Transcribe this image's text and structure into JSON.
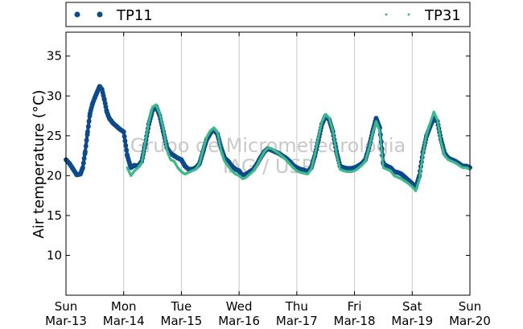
{
  "chart_data": {
    "type": "scatter",
    "ylabel": "Air temperature (°C)",
    "xlabel": "",
    "ylim": [
      5,
      38
    ],
    "y_ticks": [
      10,
      15,
      20,
      25,
      30,
      35
    ],
    "x_range_days": [
      "Mar-13",
      "Mar-20"
    ],
    "x_ticks": [
      {
        "day": "Sun",
        "date": "Mar-13"
      },
      {
        "day": "Mon",
        "date": "Mar-14"
      },
      {
        "day": "Tue",
        "date": "Mar-15"
      },
      {
        "day": "Wed",
        "date": "Mar-16"
      },
      {
        "day": "Thu",
        "date": "Mar-17"
      },
      {
        "day": "Fri",
        "date": "Mar-18"
      },
      {
        "day": "Sat",
        "date": "Mar-19"
      },
      {
        "day": "Sun",
        "date": "Mar-20"
      }
    ],
    "grid": "vertical",
    "legend_placement": "top",
    "watermark": [
      "Grupo de Micrometeorologia",
      "IAG / USP"
    ],
    "series": [
      {
        "name": "TP11",
        "color": "#0d4a8a",
        "marker": "large-dot",
        "points": [
          [
            "Mar-13 00:00",
            22.0
          ],
          [
            "Mar-13 01:30",
            21.5
          ],
          [
            "Mar-13 03:00",
            20.8
          ],
          [
            "Mar-13 04:30",
            20.1
          ],
          [
            "Mar-13 06:00",
            20.2
          ],
          [
            "Mar-13 07:00",
            21.0
          ],
          [
            "Mar-13 08:00",
            23.0
          ],
          [
            "Mar-13 09:00",
            25.5
          ],
          [
            "Mar-13 10:00",
            27.8
          ],
          [
            "Mar-13 11:00",
            29.0
          ],
          [
            "Mar-13 12:00",
            29.8
          ],
          [
            "Mar-13 13:00",
            30.5
          ],
          [
            "Mar-13 14:00",
            31.2
          ],
          [
            "Mar-13 15:00",
            30.8
          ],
          [
            "Mar-13 16:00",
            29.5
          ],
          [
            "Mar-13 17:00",
            28.0
          ],
          [
            "Mar-13 18:00",
            27.2
          ],
          [
            "Mar-13 19:30",
            26.6
          ],
          [
            "Mar-13 21:00",
            26.2
          ],
          [
            "Mar-13 22:30",
            25.8
          ],
          [
            "Mar-14 00:00",
            25.5
          ],
          [
            "Mar-14 01:30",
            22.5
          ],
          [
            "Mar-14 03:00",
            21.0
          ],
          [
            "Mar-14 04:30",
            21.3
          ],
          [
            "Mar-14 06:00",
            21.2
          ],
          [
            "Mar-14 07:30",
            21.8
          ],
          [
            "Mar-14 09:00",
            24.0
          ],
          [
            "Mar-14 10:30",
            26.5
          ],
          [
            "Mar-14 12:00",
            28.2
          ],
          [
            "Mar-14 13:30",
            28.7
          ],
          [
            "Mar-14 15:00",
            27.5
          ],
          [
            "Mar-14 16:30",
            25.5
          ],
          [
            "Mar-14 18:00",
            23.5
          ],
          [
            "Mar-14 19:30",
            22.8
          ],
          [
            "Mar-14 21:00",
            22.5
          ],
          [
            "Mar-14 22:30",
            22.2
          ],
          [
            "Mar-15 00:00",
            22.0
          ],
          [
            "Mar-15 01:30",
            21.2
          ],
          [
            "Mar-15 03:00",
            20.8
          ],
          [
            "Mar-15 04:30",
            20.8
          ],
          [
            "Mar-15 06:00",
            21.0
          ],
          [
            "Mar-15 07:30",
            21.5
          ],
          [
            "Mar-15 09:00",
            23.0
          ],
          [
            "Mar-15 10:30",
            24.5
          ],
          [
            "Mar-15 12:00",
            25.3
          ],
          [
            "Mar-15 13:30",
            25.8
          ],
          [
            "Mar-15 15:00",
            25.2
          ],
          [
            "Mar-15 16:30",
            23.5
          ],
          [
            "Mar-15 18:00",
            22.2
          ],
          [
            "Mar-15 19:30",
            21.8
          ],
          [
            "Mar-15 21:00",
            21.2
          ],
          [
            "Mar-15 22:30",
            20.8
          ],
          [
            "Mar-16 00:00",
            20.6
          ],
          [
            "Mar-16 01:30",
            20.0
          ],
          [
            "Mar-16 03:00",
            20.2
          ],
          [
            "Mar-16 04:30",
            20.5
          ],
          [
            "Mar-16 06:00",
            20.8
          ],
          [
            "Mar-16 07:30",
            21.5
          ],
          [
            "Mar-16 09:00",
            22.3
          ],
          [
            "Mar-16 10:30",
            23.0
          ],
          [
            "Mar-16 12:00",
            23.4
          ],
          [
            "Mar-16 13:30",
            23.2
          ],
          [
            "Mar-16 15:00",
            23.0
          ],
          [
            "Mar-16 16:30",
            22.8
          ],
          [
            "Mar-16 18:00",
            22.5
          ],
          [
            "Mar-16 19:30",
            22.2
          ],
          [
            "Mar-16 21:00",
            21.8
          ],
          [
            "Mar-16 22:30",
            21.3
          ],
          [
            "Mar-17 00:00",
            21.0
          ],
          [
            "Mar-17 01:30",
            20.8
          ],
          [
            "Mar-17 03:00",
            20.7
          ],
          [
            "Mar-17 04:30",
            20.5
          ],
          [
            "Mar-17 06:00",
            21.0
          ],
          [
            "Mar-17 07:30",
            22.5
          ],
          [
            "Mar-17 09:00",
            24.5
          ],
          [
            "Mar-17 10:30",
            26.5
          ],
          [
            "Mar-17 12:00",
            27.5
          ],
          [
            "Mar-17 13:30",
            27.0
          ],
          [
            "Mar-17 15:00",
            25.5
          ],
          [
            "Mar-17 16:30",
            23.0
          ],
          [
            "Mar-17 18:00",
            21.2
          ],
          [
            "Mar-17 19:30",
            21.0
          ],
          [
            "Mar-17 21:00",
            20.9
          ],
          [
            "Mar-17 22:30",
            20.9
          ],
          [
            "Mar-18 00:00",
            21.0
          ],
          [
            "Mar-18 01:30",
            21.2
          ],
          [
            "Mar-18 03:00",
            21.5
          ],
          [
            "Mar-18 04:30",
            22.0
          ],
          [
            "Mar-18 06:00",
            23.5
          ],
          [
            "Mar-18 07:30",
            25.5
          ],
          [
            "Mar-18 09:00",
            27.2
          ],
          [
            "Mar-18 10:30",
            26.0
          ],
          [
            "Mar-18 12:00",
            21.5
          ],
          [
            "Mar-18 13:30",
            21.2
          ],
          [
            "Mar-18 15:00",
            21.0
          ],
          [
            "Mar-18 16:30",
            20.5
          ],
          [
            "Mar-18 18:00",
            20.4
          ],
          [
            "Mar-18 19:30",
            20.2
          ],
          [
            "Mar-18 21:00",
            19.8
          ],
          [
            "Mar-18 22:30",
            19.4
          ],
          [
            "Mar-19 00:00",
            19.0
          ],
          [
            "Mar-19 01:30",
            18.5
          ],
          [
            "Mar-19 03:00",
            20.0
          ],
          [
            "Mar-19 04:30",
            23.0
          ],
          [
            "Mar-19 06:00",
            25.0
          ],
          [
            "Mar-19 07:30",
            26.2
          ],
          [
            "Mar-19 09:00",
            27.2
          ],
          [
            "Mar-19 10:30",
            26.8
          ],
          [
            "Mar-19 12:00",
            24.5
          ],
          [
            "Mar-19 13:30",
            22.8
          ],
          [
            "Mar-19 15:00",
            22.2
          ],
          [
            "Mar-19 16:30",
            22.0
          ],
          [
            "Mar-19 18:00",
            21.8
          ],
          [
            "Mar-19 19:30",
            21.5
          ],
          [
            "Mar-19 21:00",
            21.2
          ],
          [
            "Mar-19 22:30",
            21.2
          ],
          [
            "Mar-20 00:00",
            21.0
          ]
        ]
      },
      {
        "name": "TP31",
        "color": "#3dba8a",
        "marker": "small-dot",
        "points": [
          [
            "Mar-14 01:30",
            21.0
          ],
          [
            "Mar-14 03:00",
            20.0
          ],
          [
            "Mar-14 04:30",
            20.6
          ],
          [
            "Mar-14 06:00",
            21.0
          ],
          [
            "Mar-14 07:30",
            21.6
          ],
          [
            "Mar-14 09:00",
            24.2
          ],
          [
            "Mar-14 10:30",
            26.8
          ],
          [
            "Mar-14 12:00",
            28.6
          ],
          [
            "Mar-14 13:30",
            28.9
          ],
          [
            "Mar-14 15:00",
            27.8
          ],
          [
            "Mar-14 16:30",
            25.8
          ],
          [
            "Mar-14 18:00",
            23.2
          ],
          [
            "Mar-14 19:30",
            22.0
          ],
          [
            "Mar-14 21:00",
            21.8
          ],
          [
            "Mar-14 22:30",
            21.0
          ],
          [
            "Mar-15 00:00",
            20.5
          ],
          [
            "Mar-15 01:30",
            20.2
          ],
          [
            "Mar-15 03:00",
            20.4
          ],
          [
            "Mar-15 04:30",
            20.6
          ],
          [
            "Mar-15 06:00",
            20.8
          ],
          [
            "Mar-15 07:30",
            21.5
          ],
          [
            "Mar-15 09:00",
            23.2
          ],
          [
            "Mar-15 10:30",
            24.8
          ],
          [
            "Mar-15 12:00",
            25.6
          ],
          [
            "Mar-15 13:30",
            26.0
          ],
          [
            "Mar-15 15:00",
            25.4
          ],
          [
            "Mar-15 16:30",
            23.2
          ],
          [
            "Mar-15 18:00",
            21.8
          ],
          [
            "Mar-15 19:30",
            21.2
          ],
          [
            "Mar-15 21:00",
            20.6
          ],
          [
            "Mar-15 22:30",
            20.2
          ],
          [
            "Mar-16 00:00",
            20.0
          ],
          [
            "Mar-16 01:30",
            19.6
          ],
          [
            "Mar-16 03:00",
            19.8
          ],
          [
            "Mar-16 04:30",
            20.2
          ],
          [
            "Mar-16 06:00",
            20.6
          ],
          [
            "Mar-16 07:30",
            21.3
          ],
          [
            "Mar-16 09:00",
            22.2
          ],
          [
            "Mar-16 10:30",
            23.0
          ],
          [
            "Mar-16 12:00",
            23.5
          ],
          [
            "Mar-16 13:30",
            23.4
          ],
          [
            "Mar-16 15:00",
            23.1
          ],
          [
            "Mar-16 16:30",
            22.8
          ],
          [
            "Mar-16 18:00",
            22.4
          ],
          [
            "Mar-16 19:30",
            22.0
          ],
          [
            "Mar-16 21:00",
            21.5
          ],
          [
            "Mar-16 22:30",
            21.0
          ],
          [
            "Mar-17 00:00",
            20.6
          ],
          [
            "Mar-17 01:30",
            20.4
          ],
          [
            "Mar-17 03:00",
            20.3
          ],
          [
            "Mar-17 04:30",
            20.2
          ],
          [
            "Mar-17 06:00",
            20.8
          ],
          [
            "Mar-17 07:30",
            22.6
          ],
          [
            "Mar-17 09:00",
            24.8
          ],
          [
            "Mar-17 10:30",
            26.8
          ],
          [
            "Mar-17 12:00",
            27.7
          ],
          [
            "Mar-17 13:30",
            27.2
          ],
          [
            "Mar-17 15:00",
            25.6
          ],
          [
            "Mar-17 16:30",
            22.8
          ],
          [
            "Mar-17 18:00",
            20.8
          ],
          [
            "Mar-17 19:30",
            20.6
          ],
          [
            "Mar-17 21:00",
            20.5
          ],
          [
            "Mar-17 22:30",
            20.5
          ],
          [
            "Mar-18 00:00",
            20.6
          ],
          [
            "Mar-18 01:30",
            20.9
          ],
          [
            "Mar-18 03:00",
            21.3
          ],
          [
            "Mar-18 04:30",
            21.8
          ],
          [
            "Mar-18 06:00",
            23.4
          ],
          [
            "Mar-18 07:30",
            25.3
          ],
          [
            "Mar-18 09:00",
            26.8
          ],
          [
            "Mar-18 10:30",
            25.6
          ],
          [
            "Mar-18 12:00",
            21.0
          ],
          [
            "Mar-18 13:30",
            20.8
          ],
          [
            "Mar-18 15:00",
            20.6
          ],
          [
            "Mar-18 16:30",
            20.0
          ],
          [
            "Mar-18 18:00",
            19.8
          ],
          [
            "Mar-18 19:30",
            19.6
          ],
          [
            "Mar-18 21:00",
            19.3
          ],
          [
            "Mar-18 22:30",
            19.0
          ],
          [
            "Mar-19 00:00",
            18.6
          ],
          [
            "Mar-19 01:30",
            18.1
          ],
          [
            "Mar-19 03:00",
            19.6
          ],
          [
            "Mar-19 04:30",
            22.8
          ],
          [
            "Mar-19 06:00",
            25.2
          ],
          [
            "Mar-19 07:30",
            26.6
          ],
          [
            "Mar-19 09:00",
            28.0
          ],
          [
            "Mar-19 10:30",
            27.0
          ],
          [
            "Mar-19 12:00",
            24.2
          ],
          [
            "Mar-19 13:30",
            22.5
          ],
          [
            "Mar-19 15:00",
            22.0
          ],
          [
            "Mar-19 16:30",
            21.8
          ],
          [
            "Mar-19 18:00",
            21.6
          ],
          [
            "Mar-19 19:30",
            21.3
          ],
          [
            "Mar-19 21:00",
            21.0
          ],
          [
            "Mar-19 22:30",
            21.0
          ],
          [
            "Mar-20 00:00",
            20.8
          ]
        ]
      }
    ]
  }
}
